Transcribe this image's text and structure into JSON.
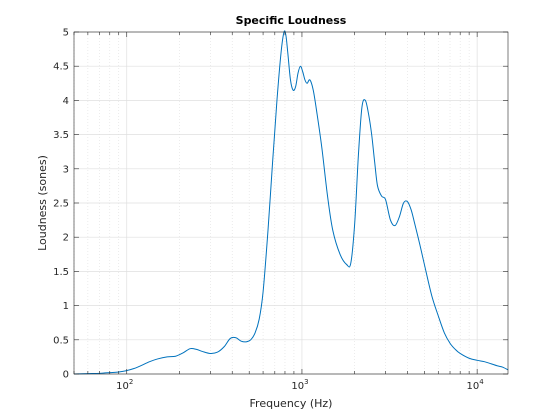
{
  "chart_data": {
    "type": "line",
    "title": "Specific Loudness",
    "xlabel": "Frequency (Hz)",
    "ylabel": "Loudness (sones)",
    "xscale": "log",
    "xlim": [
      50,
      15000
    ],
    "ylim": [
      0,
      5
    ],
    "grid": true,
    "minor_grid_x": true,
    "x_ticks": [
      {
        "value": 100,
        "base": "10",
        "exp": "2"
      },
      {
        "value": 1000,
        "base": "10",
        "exp": "3"
      },
      {
        "value": 10000,
        "base": "10",
        "exp": "4"
      }
    ],
    "y_ticks": [
      0,
      0.5,
      1,
      1.5,
      2,
      2.5,
      3,
      3.5,
      4,
      4.5,
      5
    ],
    "y_tick_labels": [
      "0",
      "0.5",
      "1",
      "1.5",
      "2",
      "2.5",
      "3",
      "3.5",
      "4",
      "4.5",
      "5"
    ],
    "colors": {
      "line": "#0072bd",
      "axis": "#262626",
      "grid": "#dfdfdf"
    },
    "series": [
      {
        "name": "",
        "x": [
          50,
          60,
          70,
          80,
          90,
          100,
          110,
          120,
          135,
          150,
          170,
          190,
          210,
          230,
          250,
          270,
          300,
          330,
          360,
          390,
          420,
          450,
          480,
          510,
          540,
          570,
          600,
          640,
          680,
          720,
          760,
          790,
          810,
          830,
          860,
          890,
          920,
          950,
          980,
          1010,
          1040,
          1070,
          1110,
          1160,
          1220,
          1300,
          1400,
          1500,
          1650,
          1800,
          1900,
          2000,
          2100,
          2200,
          2300,
          2400,
          2500,
          2600,
          2700,
          2850,
          3000,
          3200,
          3400,
          3600,
          3800,
          4000,
          4200,
          4400,
          4700,
          5000,
          5500,
          6000,
          6500,
          7000,
          7500,
          8000,
          9000,
          10000,
          11000,
          12000,
          13000,
          14000,
          15000
        ],
        "y": [
          0,
          0.005,
          0.01,
          0.02,
          0.03,
          0.05,
          0.08,
          0.12,
          0.18,
          0.22,
          0.25,
          0.26,
          0.31,
          0.37,
          0.36,
          0.33,
          0.3,
          0.32,
          0.4,
          0.52,
          0.53,
          0.48,
          0.47,
          0.5,
          0.6,
          0.8,
          1.2,
          2.1,
          3.1,
          4.0,
          4.7,
          5.0,
          4.95,
          4.7,
          4.3,
          4.15,
          4.2,
          4.4,
          4.5,
          4.42,
          4.3,
          4.25,
          4.3,
          4.15,
          3.8,
          3.3,
          2.6,
          2.1,
          1.75,
          1.6,
          1.62,
          2.2,
          3.2,
          3.9,
          4.0,
          3.8,
          3.5,
          3.1,
          2.75,
          2.6,
          2.55,
          2.25,
          2.17,
          2.3,
          2.5,
          2.52,
          2.4,
          2.2,
          1.9,
          1.6,
          1.15,
          0.85,
          0.6,
          0.45,
          0.36,
          0.3,
          0.23,
          0.2,
          0.18,
          0.15,
          0.12,
          0.1,
          0.06
        ]
      }
    ]
  }
}
